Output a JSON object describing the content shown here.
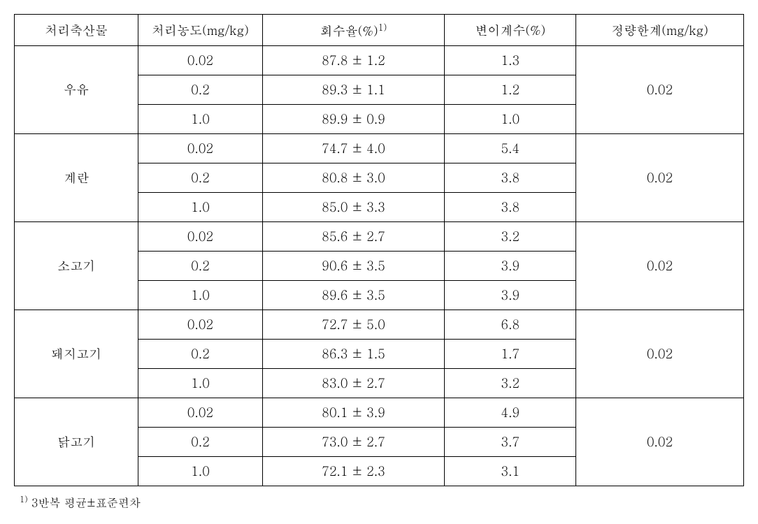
{
  "table": {
    "headers": {
      "sample": "처리축산물",
      "concentration": "처리농도(mg/kg)",
      "recovery": "회수율(%)",
      "recovery_sup": "1)",
      "cv": "변이계수(%)",
      "loq": "정량한계(mg/kg)"
    },
    "groups": [
      {
        "sample": "우유",
        "loq": "0.02",
        "rows": [
          {
            "conc": "0.02",
            "recovery": "87.8 ± 1.2",
            "cv": "1.3"
          },
          {
            "conc": "0.2",
            "recovery": "89.3 ± 1.1",
            "cv": "1.2"
          },
          {
            "conc": "1.0",
            "recovery": "89.9 ± 0.9",
            "cv": "1.0"
          }
        ]
      },
      {
        "sample": "계란",
        "loq": "0.02",
        "rows": [
          {
            "conc": "0.02",
            "recovery": "74.7 ± 4.0",
            "cv": "5.4"
          },
          {
            "conc": "0.2",
            "recovery": "80.8 ± 3.0",
            "cv": "3.8"
          },
          {
            "conc": "1.0",
            "recovery": "85.0 ± 3.3",
            "cv": "3.8"
          }
        ]
      },
      {
        "sample": "소고기",
        "loq": "0.02",
        "rows": [
          {
            "conc": "0.02",
            "recovery": "85.6 ± 2.7",
            "cv": "3.2"
          },
          {
            "conc": "0.2",
            "recovery": "90.6 ± 3.5",
            "cv": "3.9"
          },
          {
            "conc": "1.0",
            "recovery": "89.6 ± 3.5",
            "cv": "3.9"
          }
        ]
      },
      {
        "sample": "돼지고기",
        "loq": "0.02",
        "rows": [
          {
            "conc": "0.02",
            "recovery": "72.7 ± 5.0",
            "cv": "6.8"
          },
          {
            "conc": "0.2",
            "recovery": "86.3 ± 1.5",
            "cv": "1.7"
          },
          {
            "conc": "1.0",
            "recovery": "83.0 ± 2.7",
            "cv": "3.2"
          }
        ]
      },
      {
        "sample": "닭고기",
        "loq": "0.02",
        "rows": [
          {
            "conc": "0.02",
            "recovery": "80.1 ± 3.9",
            "cv": "4.9"
          },
          {
            "conc": "0.2",
            "recovery": "73.0 ± 2.7",
            "cv": "3.7"
          },
          {
            "conc": "1.0",
            "recovery": "72.1 ± 2.3",
            "cv": "3.1"
          }
        ]
      }
    ]
  },
  "footnote": {
    "sup": "1)",
    "text": " 3반복 평균±표준편차"
  },
  "style": {
    "border_color": "#000000",
    "background_color": "#ffffff",
    "font_size_cell": 18,
    "font_size_footnote": 16
  }
}
